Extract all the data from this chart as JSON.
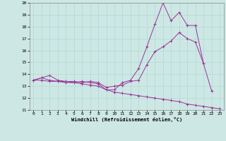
{
  "xlabel": "Windchill (Refroidissement éolien,°C)",
  "ylabel": "",
  "bg_color": "#cde8e4",
  "line_color": "#993399",
  "grid_color": "#b0d8d4",
  "xlim": [
    -0.5,
    23.5
  ],
  "ylim": [
    11,
    20
  ],
  "xticks": [
    0,
    1,
    2,
    3,
    4,
    5,
    6,
    7,
    8,
    9,
    10,
    11,
    12,
    13,
    14,
    15,
    16,
    17,
    18,
    19,
    20,
    21,
    22,
    23
  ],
  "yticks": [
    11,
    12,
    13,
    14,
    15,
    16,
    17,
    18,
    19,
    20
  ],
  "hours": [
    0,
    1,
    2,
    3,
    4,
    5,
    6,
    7,
    8,
    9,
    10,
    11,
    12,
    13,
    14,
    15,
    16,
    17,
    18,
    19,
    20,
    21,
    22,
    23
  ],
  "line1": [
    13.5,
    13.7,
    13.9,
    13.5,
    13.4,
    13.3,
    13.4,
    13.3,
    13.2,
    12.7,
    12.7,
    13.3,
    13.5,
    14.5,
    16.3,
    18.2,
    20.0,
    18.5,
    19.2,
    18.1,
    18.1,
    14.9,
    12.6,
    null
  ],
  "line2": [
    13.5,
    13.7,
    13.5,
    13.4,
    13.4,
    13.4,
    13.3,
    13.4,
    13.3,
    12.9,
    13.0,
    13.1,
    13.4,
    13.5,
    14.8,
    15.9,
    16.3,
    16.8,
    17.5,
    17.0,
    16.7,
    14.9,
    null,
    null
  ],
  "line3": [
    13.5,
    13.5,
    13.4,
    13.4,
    13.3,
    13.3,
    13.2,
    13.1,
    13.0,
    12.7,
    12.5,
    12.4,
    12.3,
    12.2,
    12.1,
    12.0,
    11.9,
    11.8,
    11.7,
    11.5,
    11.4,
    11.3,
    11.2,
    11.1
  ]
}
